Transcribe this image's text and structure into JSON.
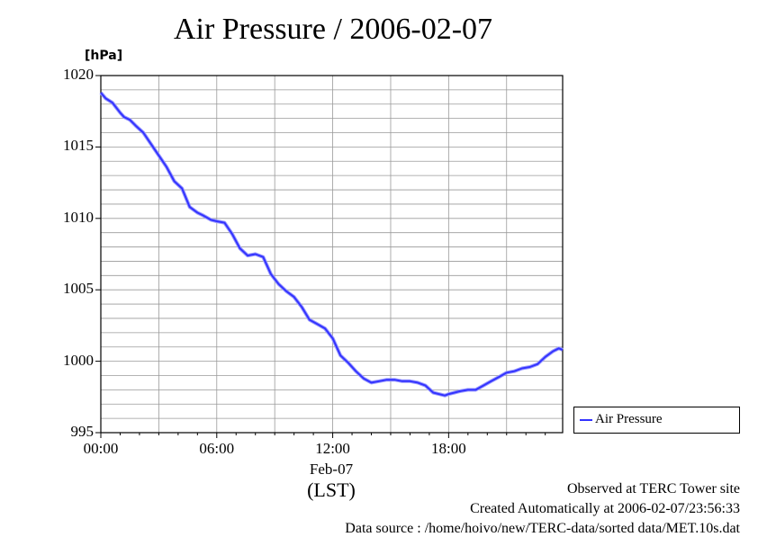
{
  "chart_data": {
    "type": "line",
    "title": "Air Pressure / 2006-02-07",
    "ylabel": "[hPa]",
    "xlabel": "(LST)",
    "date_label": "Feb-07",
    "ylim": [
      995,
      1020
    ],
    "xlim": [
      0,
      23.9
    ],
    "y_ticks": [
      "995",
      "1000",
      "1005",
      "1010",
      "1015",
      "1020"
    ],
    "x_ticks": [
      {
        "hour": 0,
        "label": "00:00"
      },
      {
        "hour": 6,
        "label": "06:00"
      },
      {
        "hour": 12,
        "label": "12:00"
      },
      {
        "hour": 18,
        "label": "18:00"
      }
    ],
    "grid": true,
    "legend_position": "right-bottom",
    "series": [
      {
        "name": "Air Pressure",
        "color": "#3333ff",
        "x": [
          0,
          0.25,
          0.6,
          1.0,
          1.2,
          1.5,
          1.8,
          2.2,
          2.6,
          3.0,
          3.4,
          3.8,
          4.2,
          4.6,
          5.0,
          5.3,
          5.7,
          6.0,
          6.4,
          6.8,
          7.2,
          7.6,
          8.0,
          8.4,
          8.8,
          9.2,
          9.6,
          10.0,
          10.4,
          10.8,
          11.2,
          11.6,
          12.0,
          12.4,
          12.8,
          13.2,
          13.6,
          14.0,
          14.4,
          14.8,
          15.2,
          15.6,
          16.0,
          16.4,
          16.8,
          17.2,
          17.5,
          17.8,
          18.0,
          18.3,
          18.6,
          19.0,
          19.4,
          19.8,
          20.2,
          20.6,
          21.0,
          21.4,
          21.8,
          22.2,
          22.6,
          23.0,
          23.4,
          23.7,
          23.9
        ],
        "values": [
          1018.8,
          1018.4,
          1018.1,
          1017.4,
          1017.1,
          1016.9,
          1016.5,
          1016.0,
          1015.2,
          1014.4,
          1013.6,
          1012.6,
          1012.1,
          1010.8,
          1010.4,
          1010.2,
          1009.9,
          1009.8,
          1009.7,
          1008.9,
          1007.9,
          1007.4,
          1007.5,
          1007.3,
          1006.1,
          1005.4,
          1004.9,
          1004.5,
          1003.8,
          1002.9,
          1002.6,
          1002.3,
          1001.6,
          1000.4,
          999.9,
          999.3,
          998.8,
          998.5,
          998.6,
          998.7,
          998.7,
          998.6,
          998.6,
          998.5,
          998.3,
          997.8,
          997.7,
          997.6,
          997.7,
          997.8,
          997.9,
          998.0,
          998.0,
          998.3,
          998.6,
          998.9,
          999.2,
          999.3,
          999.5,
          999.6,
          999.8,
          1000.3,
          1000.7,
          1000.9,
          1000.8
        ]
      }
    ]
  },
  "footer": {
    "line1": "Observed at TERC Tower site",
    "line2": "Created Automatically at 2006-02-07/23:56:33",
    "line3": "Data source : /home/hoivo/new/TERC-data/sorted  data/MET.10s.dat"
  }
}
